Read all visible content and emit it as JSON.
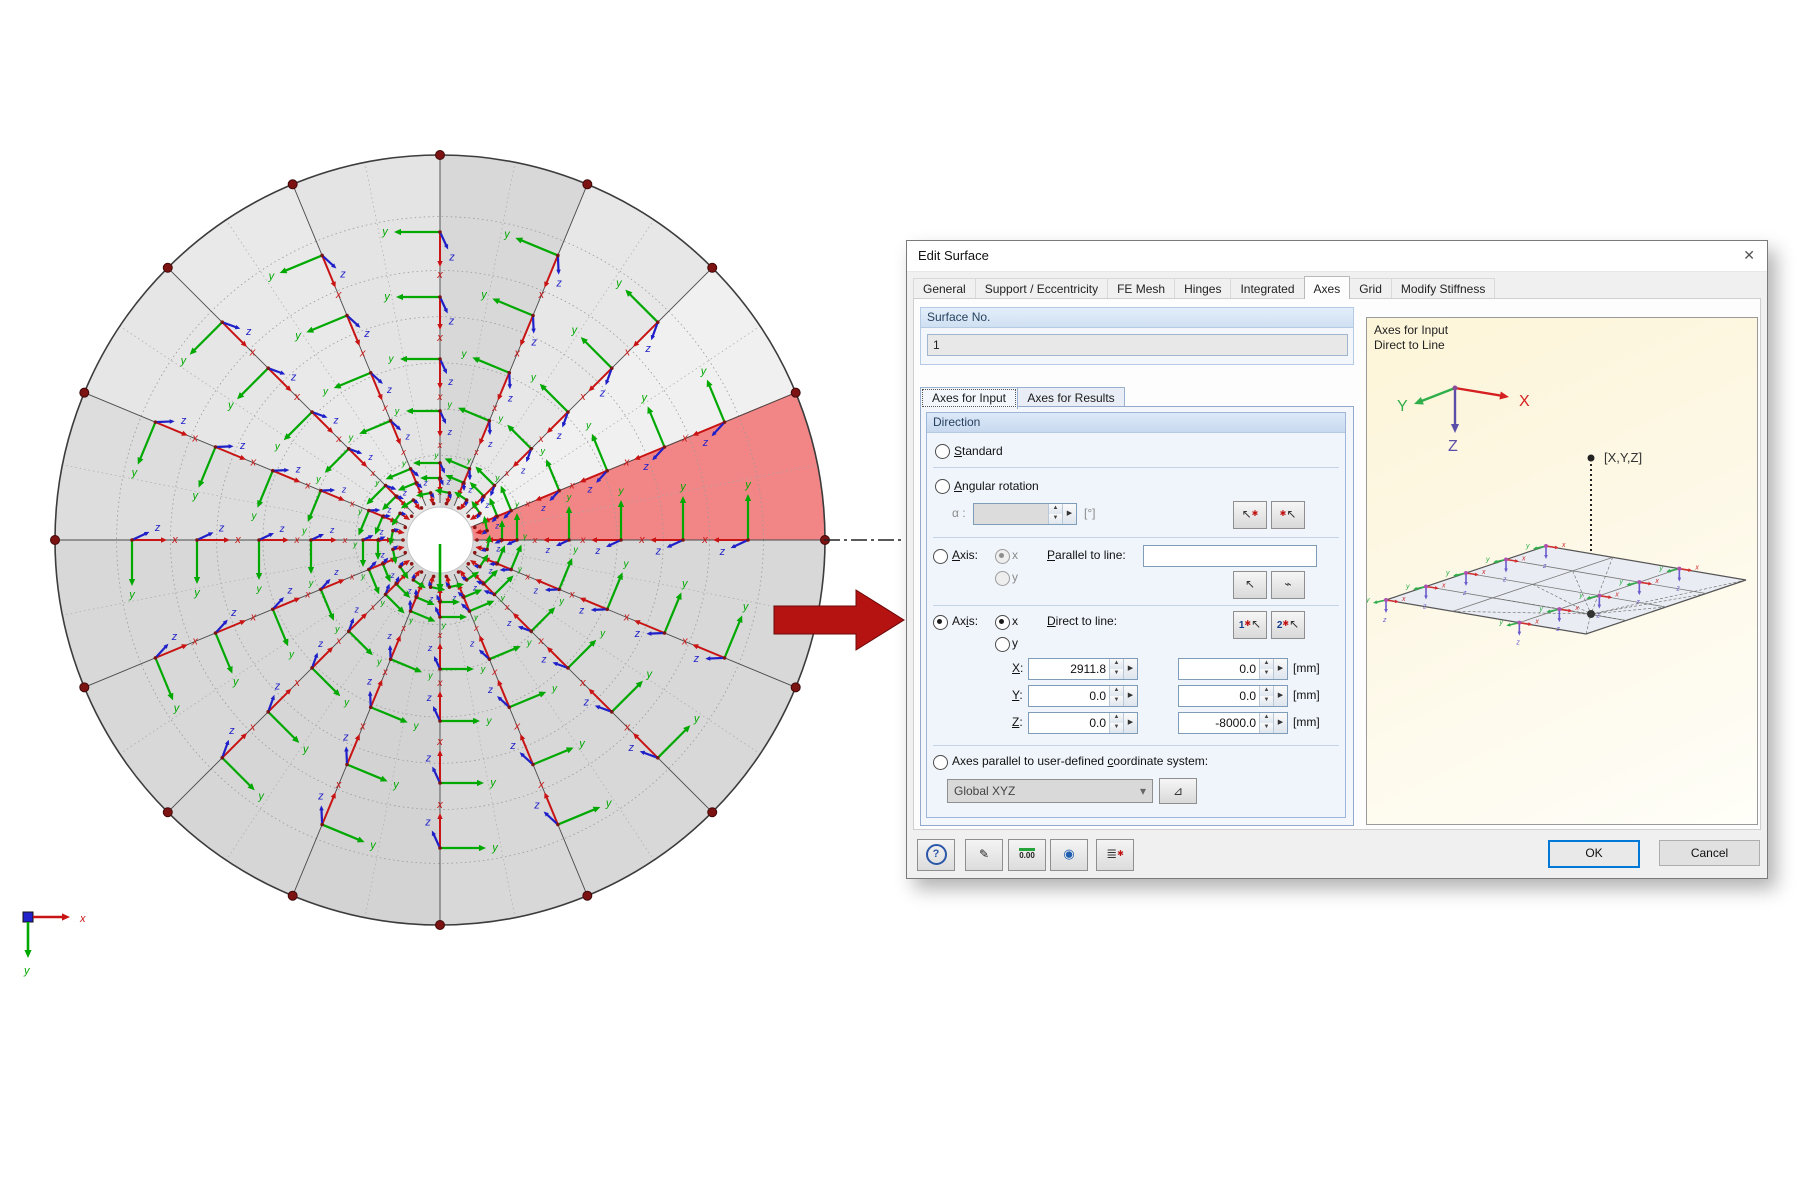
{
  "model": {
    "axis_labels": {
      "x": "x",
      "y": "y",
      "z": "z"
    },
    "global_cs": {
      "x_label": "x",
      "y_label": "y"
    },
    "colors": {
      "surface_fill": "#d8d8d8",
      "highlight_sector": "#f28686",
      "highlight_border": "#b84444",
      "arrow_green": "#00a800",
      "arrow_red": "#c81414",
      "arrow_blue": "#2020c8",
      "node": "#7d1212",
      "big_arrow": "#b51212",
      "outline": "#3c3c3c"
    }
  },
  "dialog": {
    "title": "Edit Surface",
    "tabs": [
      "General",
      "Support / Eccentricity",
      "FE Mesh",
      "Hinges",
      "Integrated",
      "Axes",
      "Grid",
      "Modify Stiffness"
    ],
    "surface": {
      "header": "Surface No.",
      "value": "1"
    },
    "subtabs": [
      "Axes for Input",
      "Axes for Results"
    ],
    "direction": {
      "header": "Direction",
      "standard": "Standard",
      "angular": "Angular rotation",
      "alpha_label": "α :",
      "alpha_value": "",
      "alpha_unit": "[°]",
      "axis1_label": "Axis:",
      "axis2_label": "Axis:",
      "sub_x": "x",
      "sub_y": "y",
      "parallel_label": "Parallel to line:",
      "parallel_value": "",
      "direct_label": "Direct to line:",
      "rows": [
        {
          "label": "X:",
          "v1": "2911.8",
          "v2": "0.0",
          "unit": "[mm]"
        },
        {
          "label": "Y:",
          "v1": "0.0",
          "v2": "0.0",
          "unit": "[mm]"
        },
        {
          "label": "Z:",
          "v1": "0.0",
          "v2": "-8000.0",
          "unit": "[mm]"
        }
      ],
      "ucs_label": "Axes parallel to user-defined coordinate system:",
      "ucs_value": "Global XYZ"
    },
    "preview": {
      "line1": "Axes for Input",
      "line2": "Direct to Line",
      "point_label": "[X,Y,Z]",
      "axis_x": "X",
      "axis_y": "Y",
      "axis_z": "Z"
    },
    "ok": "OK",
    "cancel": "Cancel"
  },
  "icons": {
    "close": "✕",
    "spin_up": "▲",
    "spin_down": "▼",
    "more": "▶",
    "dropdown": "▾",
    "help": "?",
    "edit": "✎",
    "units": "0.00",
    "eye": "◉",
    "list": "≣",
    "cursor": "↖",
    "curve": "⌁",
    "one": "1",
    "two": "2",
    "cs": "⊿",
    "star": "✱"
  }
}
